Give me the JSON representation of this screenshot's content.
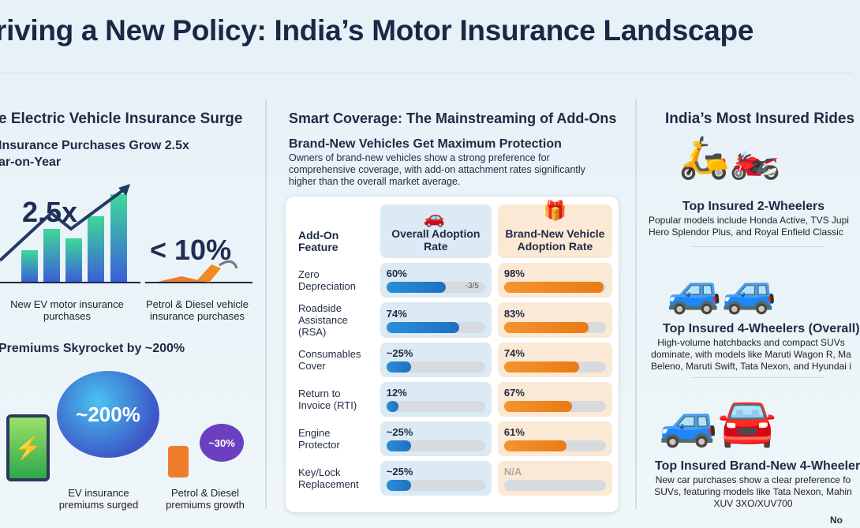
{
  "title": "riving a New Policy: India’s Motor Insurance Landscape",
  "left": {
    "heading": "e Electric Vehicle Insurance Surge",
    "sub1": "Insurance Purchases Grow 2.5x",
    "sub1b": "ar-on-Year",
    "ev_stat": "2.5x",
    "ev_label": "New EV motor insurance purchases",
    "ice_stat": "< 10%",
    "ice_label": "Petrol & Diesel vehicle insurance purchases",
    "sub2": "Premiums Skyrocket by ~200%",
    "ev_prem_stat": "~200%",
    "ev_prem_label": "EV insurance premiums surged",
    "ice_prem_stat": "~30%",
    "ice_prem_label": "Petrol & Diesel premiums growth"
  },
  "middle": {
    "heading": "Smart Coverage: The Mainstreaming of Add-Ons",
    "subheading": "Brand-New Vehicles Get Maximum Protection",
    "desc": "Owners of brand-new vehicles show a strong preference for comprehensive coverage, with add-on attachment rates significantly higher than the overall market average.",
    "col_feature": "Add-On Feature",
    "col_overall": "Overall Adoption Rate",
    "col_new": "Brand-New Vehicle Adoption Rate",
    "bar_note": "-3/5",
    "rows": [
      {
        "feature": "Zero Depreciation",
        "overall": "60%",
        "overall_val": 60,
        "new": "98%",
        "new_val": 98
      },
      {
        "feature": "Roadside Assistance (RSA)",
        "overall": "74%",
        "overall_val": 74,
        "new": "83%",
        "new_val": 83
      },
      {
        "feature": "Consumables Cover",
        "overall": "~25%",
        "overall_val": 25,
        "new": "74%",
        "new_val": 74
      },
      {
        "feature": "Return to Invoice (RTI)",
        "overall": "12%",
        "overall_val": 12,
        "new": "67%",
        "new_val": 67
      },
      {
        "feature": "Engine Protector",
        "overall": "~25%",
        "overall_val": 25,
        "new": "61%",
        "new_val": 61
      },
      {
        "feature": "Key/Lock Replacement",
        "overall": "~25%",
        "overall_val": 25,
        "new": "N/A",
        "new_val": 0
      }
    ],
    "colors": {
      "overall": "#2a8fd8",
      "new": "#f08a22"
    }
  },
  "right": {
    "heading": "India’s Most Insured Rides",
    "blocks": [
      {
        "title": "Top Insured 2-Wheelers",
        "text": "Popular models include Honda Active, TVS Jupi Hero Splendor Plus, and Royal Enfield Classic"
      },
      {
        "title": "Top Insured 4-Wheelers (Overall)",
        "text": "High-volume hatchbacks and compact SUVs dominate, with models like Maruti Wagon R, Ma Beleno, Maruti Swift, Tata Nexon, and Hyundai i"
      },
      {
        "title": "Top Insured Brand-New 4-Wheeler",
        "text": "New car purchases show a clear preference fo SUVs, featuring models like Tata Nexon, Mahin XUV 3XO/XUV700"
      }
    ],
    "footer": "No"
  }
}
